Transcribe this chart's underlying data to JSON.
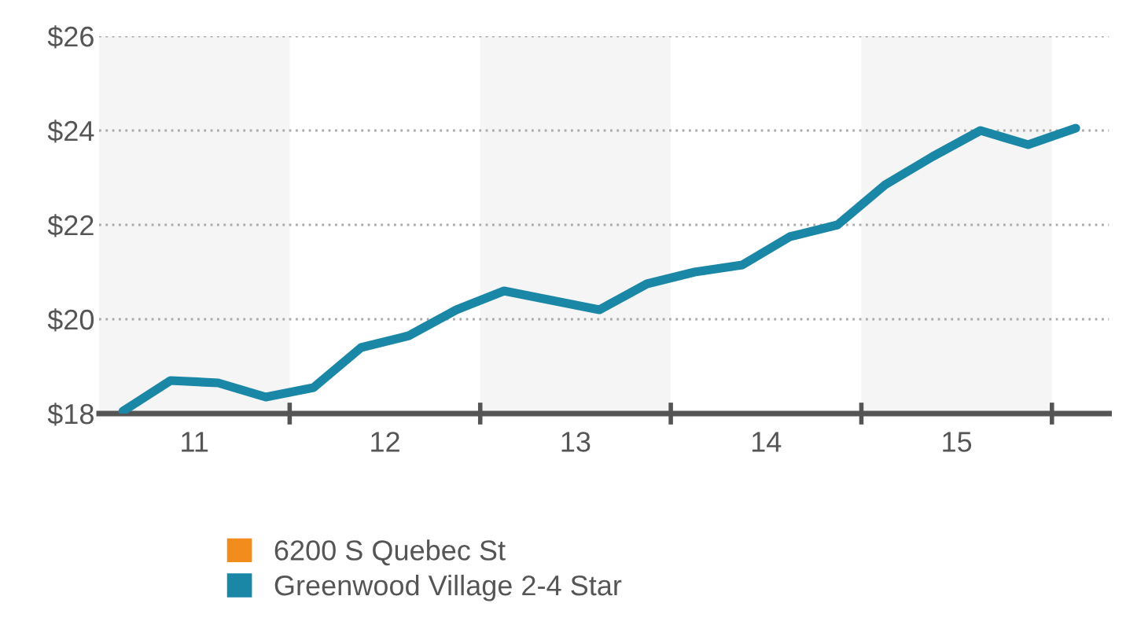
{
  "chart_data": {
    "type": "line",
    "x": [
      11.125,
      11.375,
      11.625,
      11.875,
      12.125,
      12.375,
      12.625,
      12.875,
      13.125,
      13.375,
      13.625,
      13.875,
      14.125,
      14.375,
      14.625,
      14.875,
      15.125,
      15.375,
      15.625,
      15.875,
      16.125
    ],
    "series": [
      {
        "name": "6200 S Quebec St",
        "color": "#f28c1c",
        "values": [
          null,
          null,
          null,
          null,
          null,
          null,
          null,
          null,
          null,
          null,
          null,
          null,
          null,
          null,
          null,
          null,
          null,
          null,
          null,
          null,
          null
        ]
      },
      {
        "name": "Greenwood Village 2-4 Star",
        "color": "#1a87a6",
        "values": [
          18.05,
          18.7,
          18.65,
          18.35,
          18.55,
          19.4,
          19.65,
          20.2,
          20.6,
          20.4,
          20.2,
          20.75,
          21.0,
          21.15,
          21.75,
          22.0,
          22.85,
          23.45,
          24.0,
          23.7,
          24.05
        ]
      }
    ],
    "xlim": [
      11,
      16.3
    ],
    "xticks": [
      {
        "value": 11.5,
        "label": "11"
      },
      {
        "value": 12,
        "label": null
      },
      {
        "value": 12.5,
        "label": "12"
      },
      {
        "value": 13,
        "label": null
      },
      {
        "value": 13.5,
        "label": "13"
      },
      {
        "value": 14,
        "label": null
      },
      {
        "value": 14.5,
        "label": "14"
      },
      {
        "value": 15,
        "label": null
      },
      {
        "value": 15.5,
        "label": "15"
      },
      {
        "value": 16,
        "label": null
      }
    ],
    "ylim": [
      18,
      26
    ],
    "yticks": [
      {
        "value": 18,
        "label": "$18"
      },
      {
        "value": 20,
        "label": "$20"
      },
      {
        "value": 22,
        "label": "$22"
      },
      {
        "value": 24,
        "label": "$24"
      },
      {
        "value": 26,
        "label": "$26"
      }
    ],
    "bands": [
      {
        "axis": "x",
        "from": 11,
        "to": 12,
        "color": "#f5f5f5"
      },
      {
        "axis": "x",
        "from": 13,
        "to": 14,
        "color": "#f5f5f5"
      },
      {
        "axis": "x",
        "from": 15,
        "to": 16,
        "color": "#f5f5f5"
      }
    ],
    "grid": "y",
    "legend": "bottom",
    "marker": "none",
    "line_style": "solid"
  }
}
